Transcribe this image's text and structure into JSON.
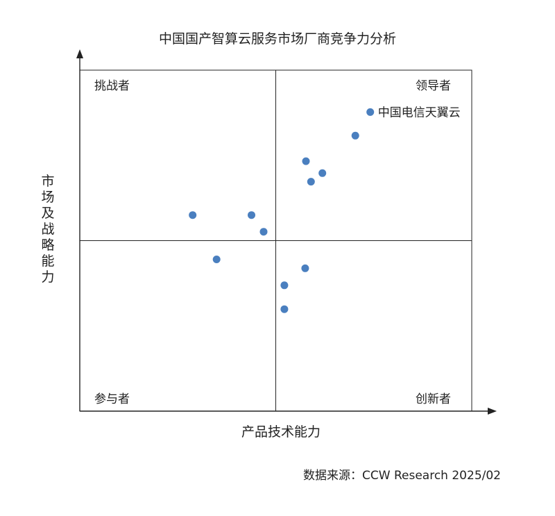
{
  "chart_data": {
    "type": "scatter",
    "title": "中国国产智算云服务市场厂商竞争力分析",
    "xlabel": "产品技术能力",
    "ylabel": "市场及战略能力",
    "xlim": [
      0,
      100
    ],
    "ylim": [
      0,
      100
    ],
    "quadrants": {
      "top_left": "挑战者",
      "top_right": "领导者",
      "bottom_left": "参与者",
      "bottom_right": "创新者"
    },
    "points": [
      {
        "x": 74.1,
        "y": 87.7,
        "label": "中国电信天翼云"
      },
      {
        "x": 70.3,
        "y": 80.8,
        "label": ""
      },
      {
        "x": 57.7,
        "y": 73.3,
        "label": ""
      },
      {
        "x": 61.9,
        "y": 69.8,
        "label": ""
      },
      {
        "x": 59.0,
        "y": 67.3,
        "label": ""
      },
      {
        "x": 28.8,
        "y": 57.5,
        "label": ""
      },
      {
        "x": 43.8,
        "y": 57.5,
        "label": ""
      },
      {
        "x": 46.9,
        "y": 52.6,
        "label": ""
      },
      {
        "x": 34.9,
        "y": 44.5,
        "label": ""
      },
      {
        "x": 57.5,
        "y": 41.9,
        "label": ""
      },
      {
        "x": 52.2,
        "y": 36.9,
        "label": ""
      },
      {
        "x": 52.2,
        "y": 29.9,
        "label": ""
      }
    ],
    "color": "#4a7fbf"
  },
  "source": "数据来源：CCW Research 2025/02"
}
